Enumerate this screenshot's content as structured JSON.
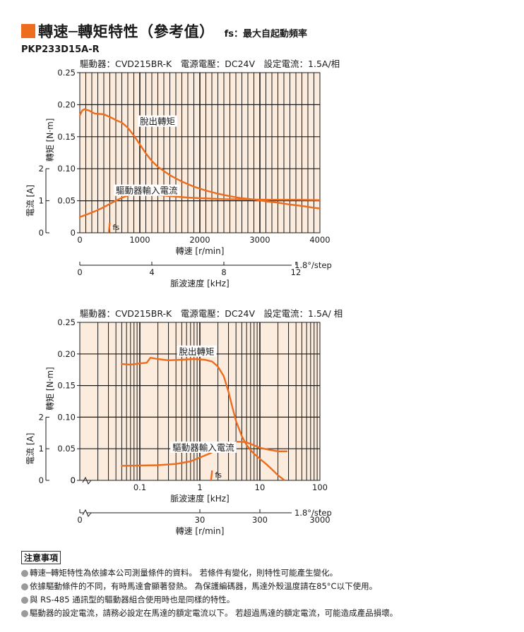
{
  "header": {
    "title": "轉速─轉矩特性（參考值）",
    "fs_note": "fs：最大自起動頻率",
    "model": "PKP233D15A-R"
  },
  "colors": {
    "accent": "#ee6c1e",
    "curve": "#ee6c1e",
    "plot_bg": "#fbecdd",
    "grid": "#1a1a1a"
  },
  "chart_data": [
    {
      "type": "line",
      "subtitle": "驅動器：CVD215BR-K　電源電壓：DC24V　設定電流：1.5A/相",
      "x_scale": "linear",
      "xlim": [
        0,
        4000
      ],
      "x_ticks": [
        0,
        1000,
        2000,
        3000,
        4000
      ],
      "x_tick_labels": [
        "0",
        "1000",
        "2000",
        "3000",
        "4000"
      ],
      "xlabel": "轉速 [r/min]",
      "secondary_x": {
        "label": "脈波速度 [kHz]",
        "ticks": [
          0,
          4,
          8,
          12
        ],
        "tick_labels": [
          "0",
          "4",
          "8",
          "12"
        ],
        "unit_note": "1.8°/step"
      },
      "ylim": [
        0,
        0.25
      ],
      "y_ticks": [
        0,
        0.05,
        0.1,
        0.15,
        0.2,
        0.25
      ],
      "y_tick_labels": [
        "0",
        "0.05",
        "0.10",
        "0.15",
        "0.20",
        "0.25"
      ],
      "ylabel": "轉矩 [N·m]",
      "current_axis": {
        "label": "電流 [A]",
        "ticks": [
          0,
          1,
          2
        ],
        "tick_labels": [
          "0",
          "1",
          "2"
        ],
        "max": 2
      },
      "grid": true,
      "series": [
        {
          "name": "脫出轉矩",
          "axis": "torque",
          "x": [
            0,
            40,
            80,
            150,
            250,
            400,
            520,
            600,
            700,
            800,
            900,
            1000,
            1100,
            1200,
            1300,
            1500,
            1700,
            1900,
            2100,
            2300,
            2500,
            2700,
            2900,
            3100,
            3300,
            3500,
            3700,
            3900,
            4000
          ],
          "y": [
            0.183,
            0.191,
            0.193,
            0.191,
            0.186,
            0.185,
            0.18,
            0.176,
            0.172,
            0.164,
            0.152,
            0.138,
            0.124,
            0.112,
            0.103,
            0.09,
            0.08,
            0.072,
            0.066,
            0.061,
            0.057,
            0.054,
            0.052,
            0.049,
            0.047,
            0.044,
            0.042,
            0.039,
            0.038
          ]
        },
        {
          "name": "驅動器輸入電流",
          "axis": "current",
          "x": [
            0,
            100,
            200,
            300,
            400,
            500,
            600,
            700,
            800,
            900,
            1000,
            1100,
            1200,
            1400,
            1600,
            1800,
            2000,
            2400,
            2800,
            3200,
            3600,
            4000
          ],
          "y": [
            0.49,
            0.56,
            0.63,
            0.71,
            0.8,
            0.9,
            1.0,
            1.09,
            1.16,
            1.22,
            1.23,
            1.22,
            1.2,
            1.16,
            1.13,
            1.1,
            1.08,
            1.05,
            1.04,
            1.03,
            1.03,
            1.02
          ]
        }
      ],
      "fs_marker": {
        "label": "fs",
        "x": 500
      },
      "annotations": [
        {
          "text": "脫出轉矩",
          "x": 1000,
          "y": 0.17
        },
        {
          "text": "驅動器輸入電流",
          "x": 600,
          "y": 0.062
        }
      ]
    },
    {
      "type": "line",
      "subtitle": "驅動器：CVD215BR-K　電源電壓：DC24V　設定電流：1.5A/ 相",
      "x_scale": "log",
      "xlim": [
        0.01,
        100
      ],
      "x_ticks": [
        0.1,
        1,
        10,
        100
      ],
      "x_tick_labels": [
        "0.1",
        "1",
        "10",
        "100"
      ],
      "xlabel": "脈波速度 [kHz]",
      "secondary_x": {
        "label": "轉速 [r/min]",
        "ticks": [
          0,
          30,
          300,
          3000
        ],
        "tick_labels": [
          "0",
          "30",
          "300",
          "3000"
        ],
        "unit_note": "1.8°/step"
      },
      "ylim": [
        0,
        0.25
      ],
      "y_ticks": [
        0,
        0.05,
        0.1,
        0.15,
        0.2,
        0.25
      ],
      "y_tick_labels": [
        "0",
        "0.05",
        "0.10",
        "0.15",
        "0.20",
        "0.25"
      ],
      "ylabel": "轉矩 [N·m]",
      "current_axis": {
        "label": "電流 [A]",
        "ticks": [
          0,
          1,
          2
        ],
        "tick_labels": [
          "0",
          "1",
          "2"
        ],
        "max": 2
      },
      "grid": true,
      "series": [
        {
          "name": "脫出轉矩",
          "axis": "torque",
          "x": [
            0.05,
            0.07,
            0.1,
            0.13,
            0.15,
            0.2,
            0.3,
            0.5,
            0.8,
            1.2,
            1.6,
            2.0,
            2.5,
            3.0,
            3.5,
            4.0,
            5.0,
            6.0,
            7.0,
            8.0,
            10.0,
            13.0,
            16.0,
            20.0,
            25.0
          ],
          "y": [
            0.184,
            0.183,
            0.185,
            0.186,
            0.194,
            0.192,
            0.19,
            0.191,
            0.192,
            0.191,
            0.188,
            0.18,
            0.165,
            0.14,
            0.115,
            0.094,
            0.07,
            0.056,
            0.048,
            0.042,
            0.034,
            0.025,
            0.017,
            0.008,
            0.001
          ]
        },
        {
          "name": "驅動器輸入電流",
          "axis": "current",
          "x": [
            0.05,
            0.1,
            0.2,
            0.4,
            0.7,
            1.0,
            1.5,
            2.0,
            3.0,
            4.0,
            5.0,
            6.0,
            8.0,
            10.0,
            15.0,
            20.0,
            28.0
          ],
          "y": [
            0.46,
            0.47,
            0.48,
            0.52,
            0.6,
            0.72,
            0.86,
            1.0,
            1.16,
            1.22,
            1.22,
            1.2,
            1.11,
            1.03,
            0.96,
            0.92,
            0.92
          ]
        }
      ],
      "fs_marker": {
        "label": "fs",
        "x": 1.6
      },
      "annotations": [
        {
          "text": "脫出轉矩",
          "x": 0.45,
          "y": 0.2
        },
        {
          "text": "驅動器輸入電流",
          "x": 0.35,
          "y": 0.048
        }
      ]
    }
  ],
  "notes": {
    "title": "注意事項",
    "items": [
      "轉速─轉矩特性為依據本公司測量條件的資料。 若條件有變化，則特性可能產生變化。",
      "依據驅動條件的不同，有時馬達會顯著發熱。 為保護編碼器，馬達外殼溫度請在85°C以下使用。",
      "與 RS-485 通訊型的驅動器組合使用時也是同樣的特性。",
      "驅動器的設定電流，請務必設定在馬達的額定電流以下。 若超過馬達的額定電流，可能造成產品損壞。"
    ]
  }
}
